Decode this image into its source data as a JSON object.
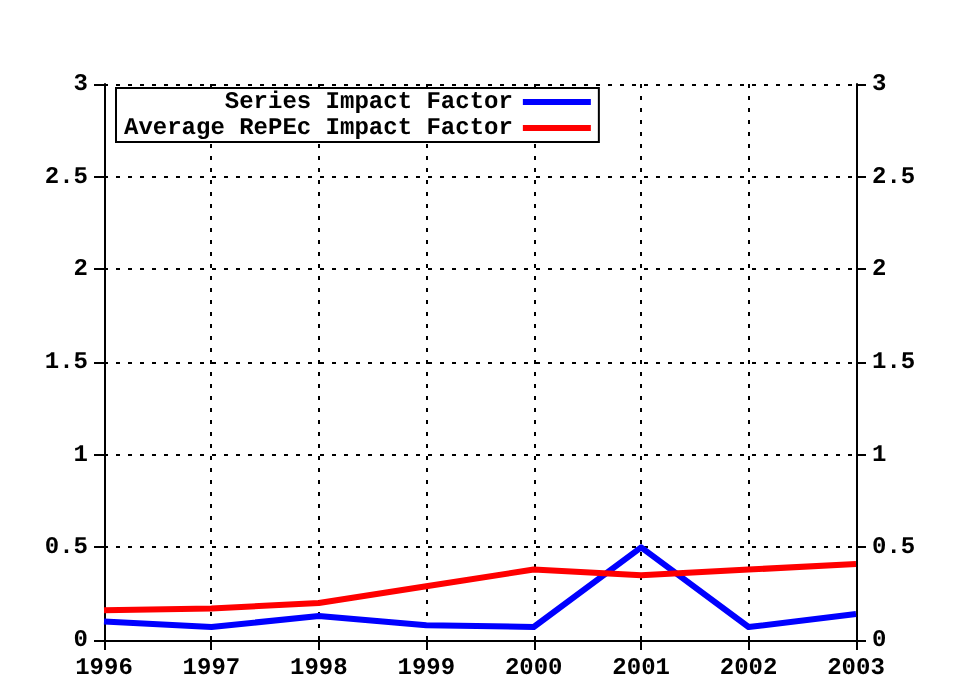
{
  "chart_data": {
    "type": "line",
    "x": [
      1996,
      1997,
      1998,
      1999,
      2000,
      2001,
      2002,
      2003
    ],
    "series": [
      {
        "name": "Series Impact Factor",
        "color": "#0000ff",
        "values": [
          0.1,
          0.07,
          0.13,
          0.08,
          0.07,
          0.5,
          0.07,
          0.14
        ]
      },
      {
        "name": "Average RePEc Impact Factor",
        "color": "#ff0000",
        "values": [
          0.16,
          0.17,
          0.2,
          0.29,
          0.38,
          0.35,
          0.38,
          0.41
        ]
      }
    ],
    "xlim": [
      1996,
      2003
    ],
    "xticks": [
      1996,
      1997,
      1998,
      1999,
      2000,
      2001,
      2002,
      2003
    ],
    "ylim": [
      0,
      3
    ],
    "yticks": [
      0,
      0.5,
      1,
      1.5,
      2,
      2.5,
      3
    ],
    "y2lim": [
      0,
      3
    ],
    "y2ticks": [
      0,
      0.5,
      1,
      1.5,
      2,
      2.5,
      3
    ],
    "grid": true,
    "legend": "top left",
    "marker": "none",
    "line_style": "solid"
  }
}
